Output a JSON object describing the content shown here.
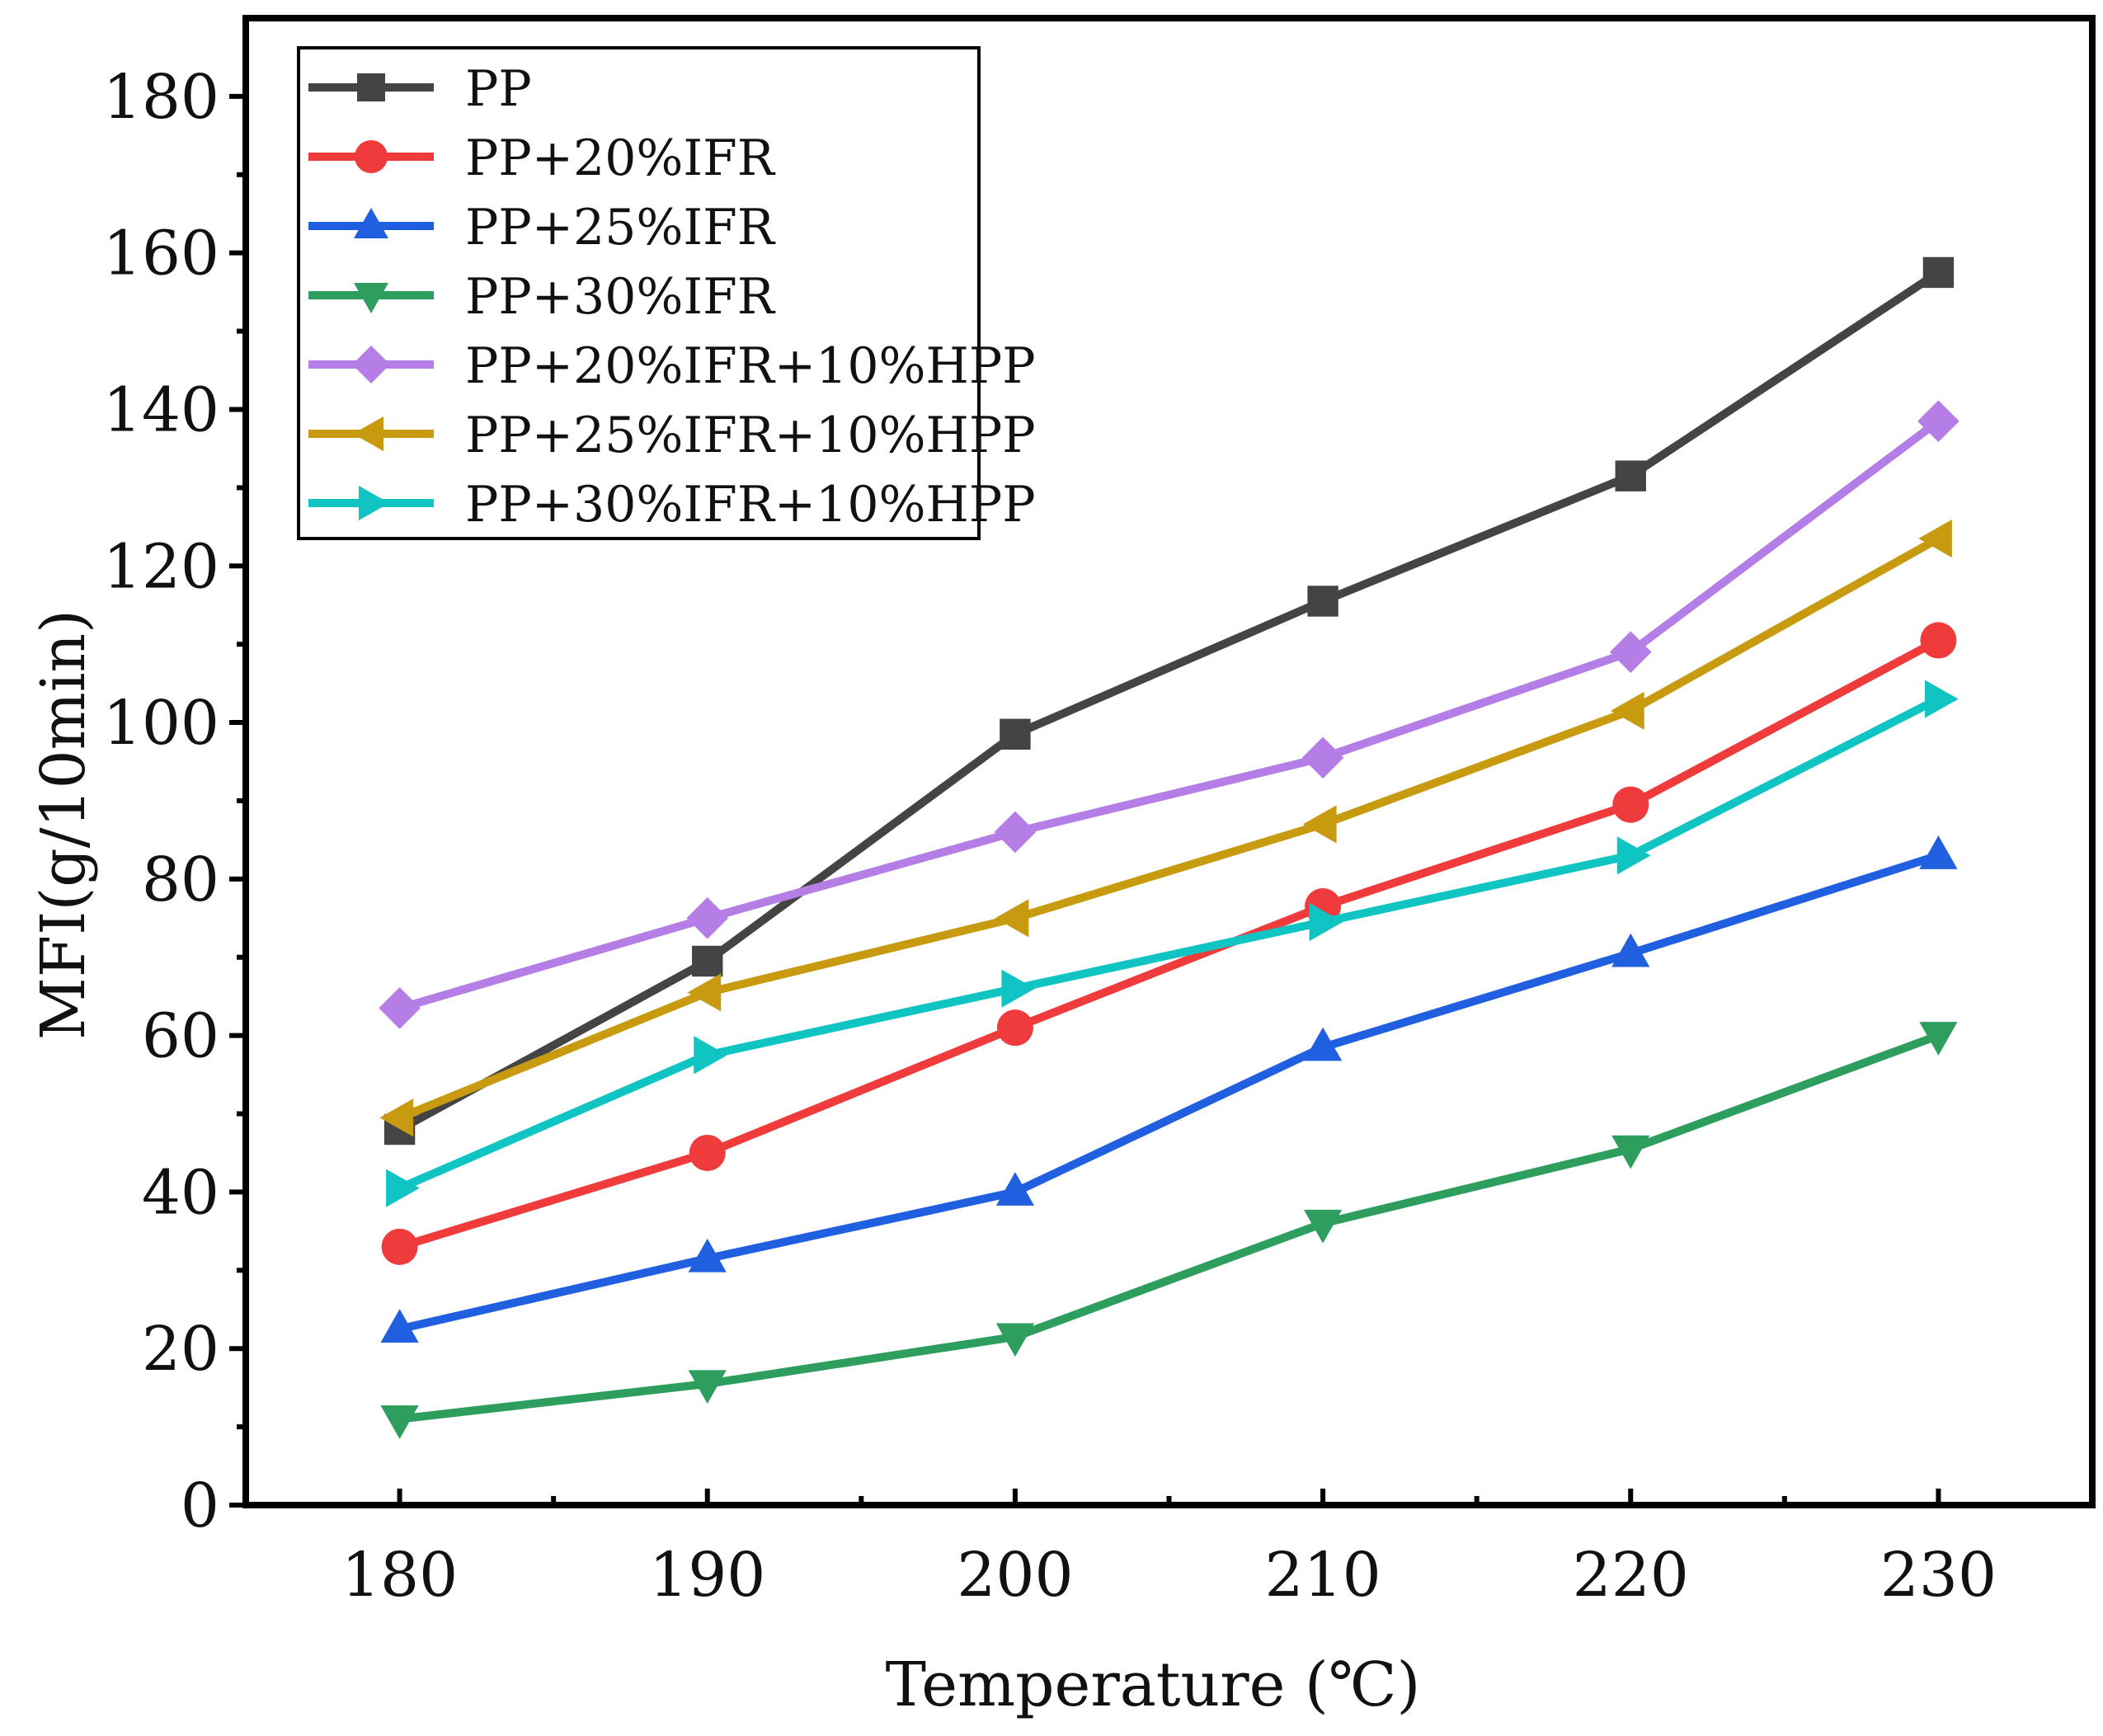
{
  "chart_data": {
    "type": "line",
    "title": "",
    "xlabel": "Temperature (℃)",
    "ylabel": "MFI(g/10min)",
    "x": [
      180,
      190,
      200,
      210,
      220,
      230
    ],
    "xlim": [
      175,
      235
    ],
    "ylim": [
      0,
      190
    ],
    "xticks": [
      180,
      190,
      200,
      210,
      220,
      230
    ],
    "yticks": [
      0,
      20,
      40,
      60,
      80,
      100,
      120,
      140,
      160,
      180
    ],
    "xtick_labels": [
      "180",
      "190",
      "200",
      "210",
      "220",
      "230"
    ],
    "ytick_labels": [
      "0",
      "20",
      "40",
      "60",
      "80",
      "100",
      "120",
      "140",
      "160",
      "180"
    ],
    "grid": false,
    "legend_position": "top-left",
    "series": [
      {
        "name": "PP",
        "marker": "square",
        "color": "#444444",
        "values": [
          48,
          69.5,
          98.5,
          115.5,
          131.5,
          157.5
        ]
      },
      {
        "name": "PP+20%IFR",
        "marker": "circle",
        "color": "#ef3b3b",
        "values": [
          33,
          45,
          61,
          76.5,
          89.5,
          110.5
        ]
      },
      {
        "name": "PP+25%IFR",
        "marker": "triangle-up",
        "color": "#1f5fe0",
        "values": [
          22.5,
          31.5,
          40,
          58.5,
          70.5,
          83
        ]
      },
      {
        "name": "PP+30%IFR",
        "marker": "triangle-down",
        "color": "#2e9e5e",
        "values": [
          11,
          15.5,
          21.5,
          36,
          45.5,
          60
        ]
      },
      {
        "name": "PP+20%IFR+10%HPP",
        "marker": "diamond",
        "color": "#b57de6",
        "values": [
          63.5,
          75,
          86,
          95.5,
          109,
          138.5
        ]
      },
      {
        "name": "PP+25%IFR+10%HPP",
        "marker": "triangle-left",
        "color": "#c89a10",
        "values": [
          49.5,
          65.5,
          75,
          87,
          101.5,
          123.5
        ]
      },
      {
        "name": "PP+30%IFR+10%HPP",
        "marker": "triangle-right",
        "color": "#10c4c4",
        "values": [
          40.5,
          57.5,
          66,
          74.5,
          83,
          103
        ]
      }
    ]
  }
}
